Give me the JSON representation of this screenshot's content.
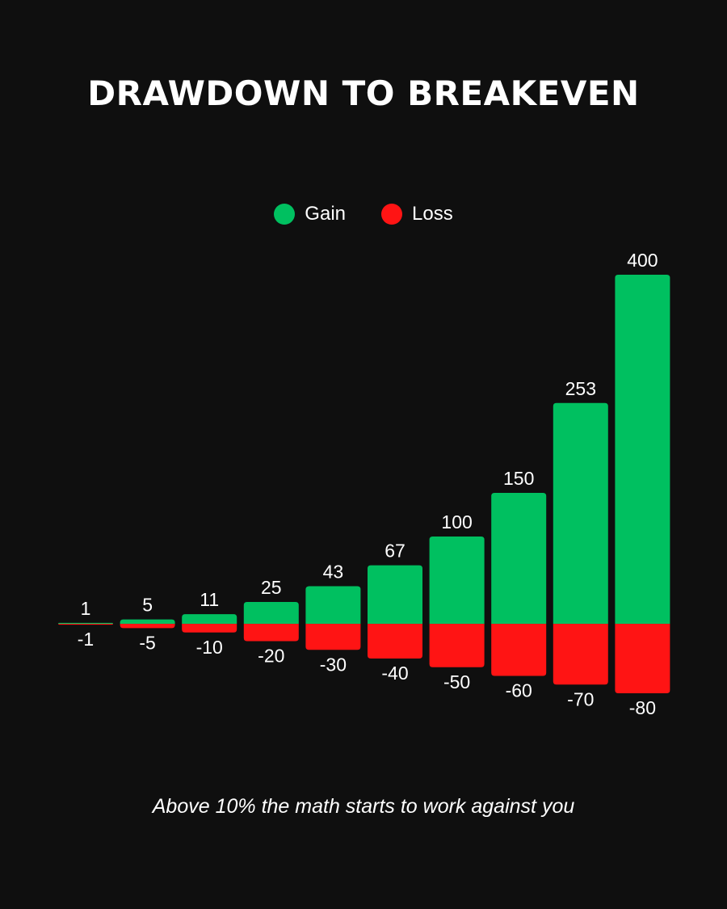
{
  "title": "DRAWDOWN TO BREAKEVEN",
  "caption": "Above 10% the math starts to work against you",
  "legend": {
    "gain_label": "Gain",
    "loss_label": "Loss"
  },
  "colors": {
    "background": "#0f0f0f",
    "gain": "#00c060",
    "loss": "#ff1414",
    "text": "#ffffff"
  },
  "chart_data": {
    "type": "bar",
    "title": "DRAWDOWN TO BREAKEVEN",
    "xlabel": "",
    "ylabel": "",
    "legend": "top-center",
    "grid": false,
    "series": [
      {
        "name": "Gain",
        "values": [
          1,
          5,
          11,
          25,
          43,
          67,
          100,
          150,
          253,
          400
        ]
      },
      {
        "name": "Loss",
        "values": [
          -1,
          -5,
          -10,
          -20,
          -30,
          -40,
          -50,
          -60,
          -70,
          -80
        ]
      }
    ]
  }
}
